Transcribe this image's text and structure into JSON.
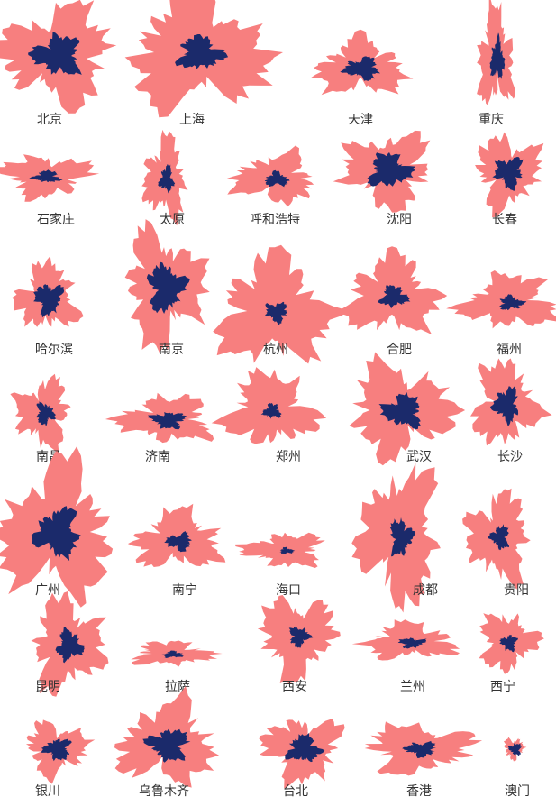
{
  "cities": [
    "北京",
    "上海",
    "天津",
    "重庆",
    "石家庄",
    "太原",
    "呼和浩特",
    "沈阳",
    "长春",
    "哈尔滨",
    "南京",
    "杭州",
    "合肥",
    "福州",
    "南昌",
    "济南",
    "郑州",
    "武汉",
    "长沙",
    "广州",
    "南宁",
    "海口",
    "成都",
    "贵阳",
    "昆明",
    "拉萨",
    "西安",
    "兰州",
    "西宁",
    "银川",
    "乌鲁木齐",
    "台北",
    "香港",
    "澳门"
  ]
}
